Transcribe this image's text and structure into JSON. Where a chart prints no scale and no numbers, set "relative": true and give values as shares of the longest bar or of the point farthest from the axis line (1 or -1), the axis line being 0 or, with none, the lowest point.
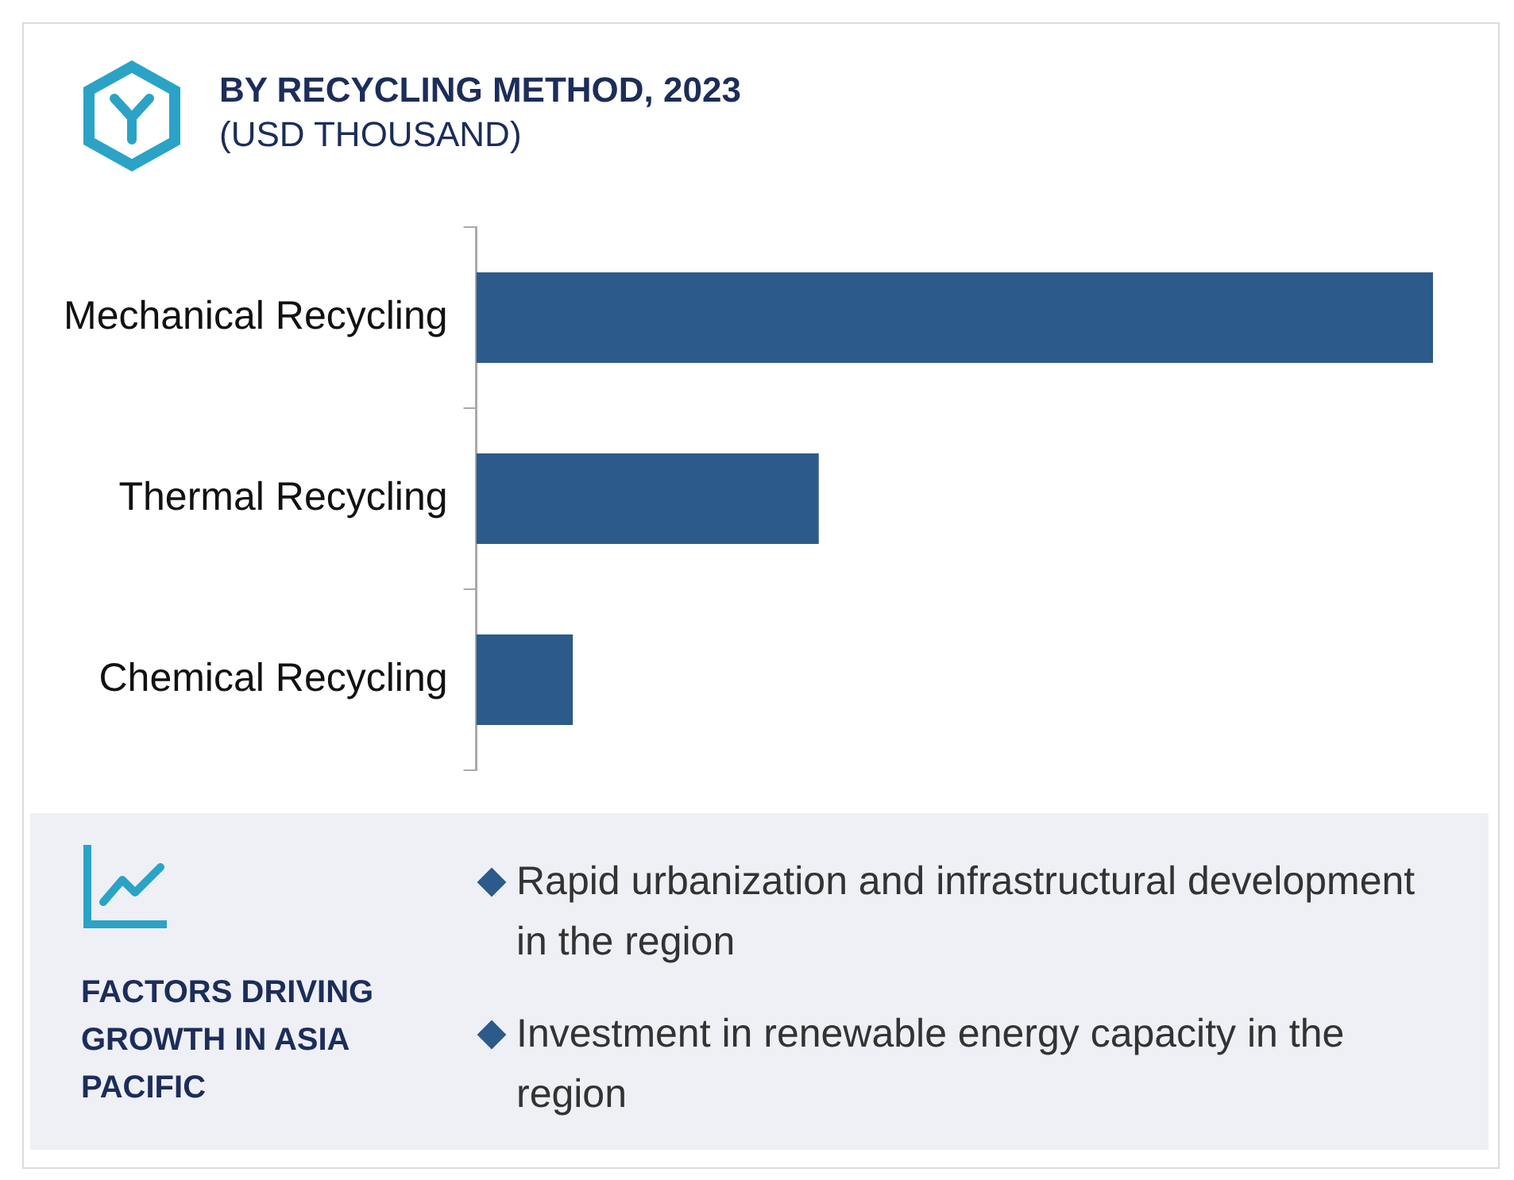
{
  "chart_data": {
    "type": "bar",
    "orientation": "horizontal",
    "relative": true,
    "title": "BY RECYCLING METHOD, 2023",
    "subtitle": "(USD THOUSAND)",
    "categories": [
      "Mechanical Recycling",
      "Thermal Recycling",
      "Chemical Recycling"
    ],
    "values": [
      1,
      0.358,
      0.101
    ],
    "color": "#2c5a8a",
    "legend": false,
    "annotations": [
      "FACTORS DRIVING GROWTH IN ASIA PACIFIC",
      "Rapid urbanization and infrastructural development in the region",
      "Investment in renewable energy capacity in the region"
    ]
  }
}
